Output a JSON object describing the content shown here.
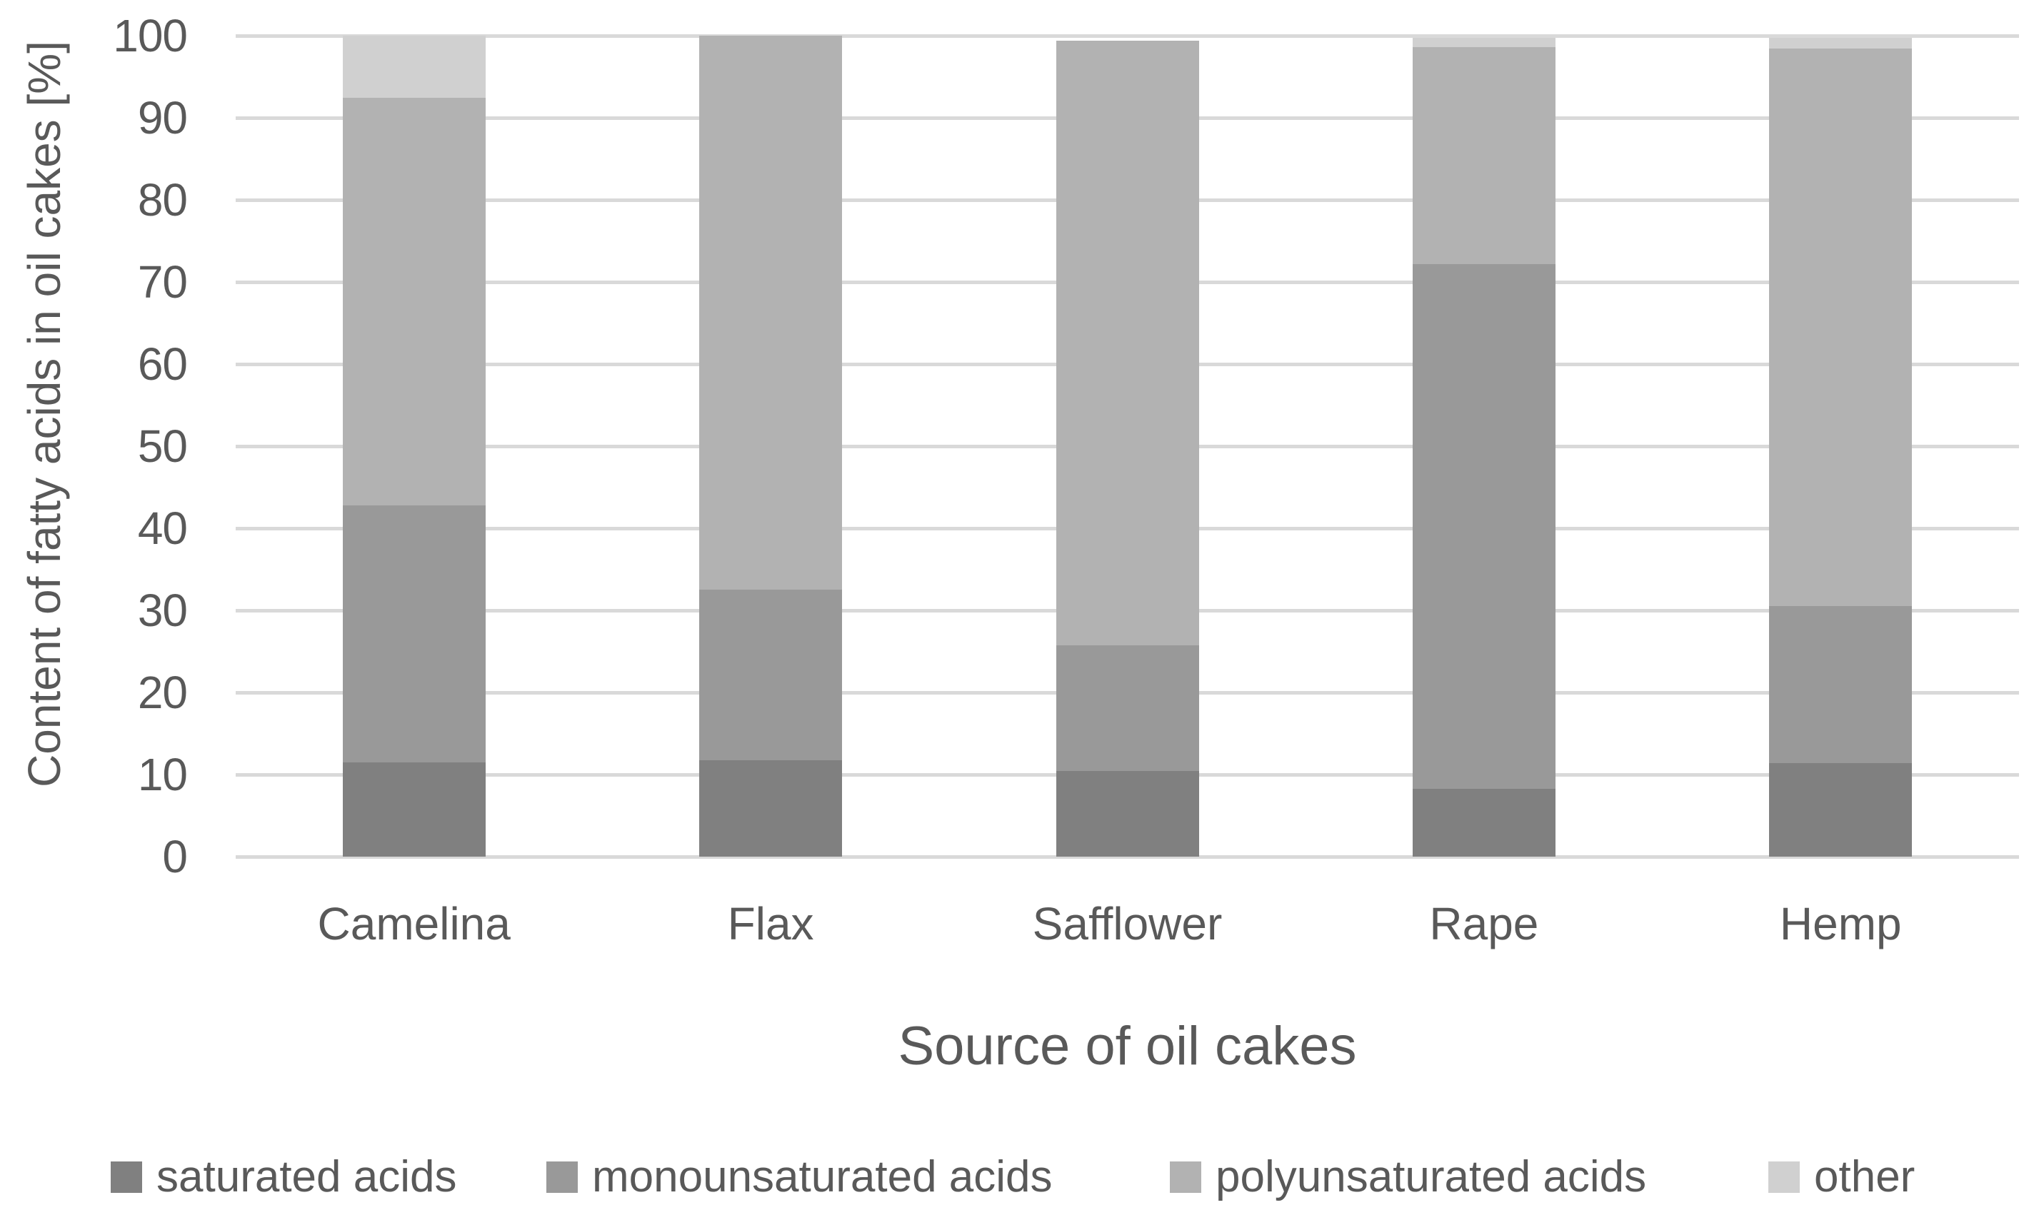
{
  "chart_data": {
    "type": "bar",
    "stacked": true,
    "orientation": "vertical",
    "xlabel": "Source of oil cakes",
    "ylabel": "Content of fatty acids in oil cakes [%]",
    "categories": [
      "Camelina",
      "Flax",
      "Safflower",
      "Rape",
      "Hemp"
    ],
    "series": [
      {
        "name": "saturated acids",
        "color": "#808080",
        "values": [
          11.5,
          11.7,
          10.4,
          8.3,
          11.4
        ]
      },
      {
        "name": "monounsaturated acids",
        "color": "#999999",
        "values": [
          31.3,
          20.8,
          15.3,
          63.9,
          19.1
        ]
      },
      {
        "name": "polyunsaturated acids",
        "color": "#b2b2b2",
        "values": [
          49.6,
          67.5,
          73.7,
          26.4,
          67.9
        ]
      },
      {
        "name": "other",
        "color": "#d0d0d0",
        "values": [
          7.6,
          0.0,
          0.0,
          1.1,
          1.3
        ]
      }
    ],
    "stack_totals": [
      100.0,
      100.0,
      99.4,
      99.7,
      99.7
    ],
    "ylim": [
      0,
      100
    ],
    "yticks": [
      0,
      10,
      20,
      30,
      40,
      50,
      60,
      70,
      80,
      90,
      100
    ],
    "grid": "horizontal",
    "gridline_color": "#d9d9d9",
    "text_color": "#595959",
    "legend_position": "bottom",
    "legend_entries": [
      "saturated acids",
      "monounsaturated acids",
      "polyunsaturated acids",
      "other"
    ]
  }
}
